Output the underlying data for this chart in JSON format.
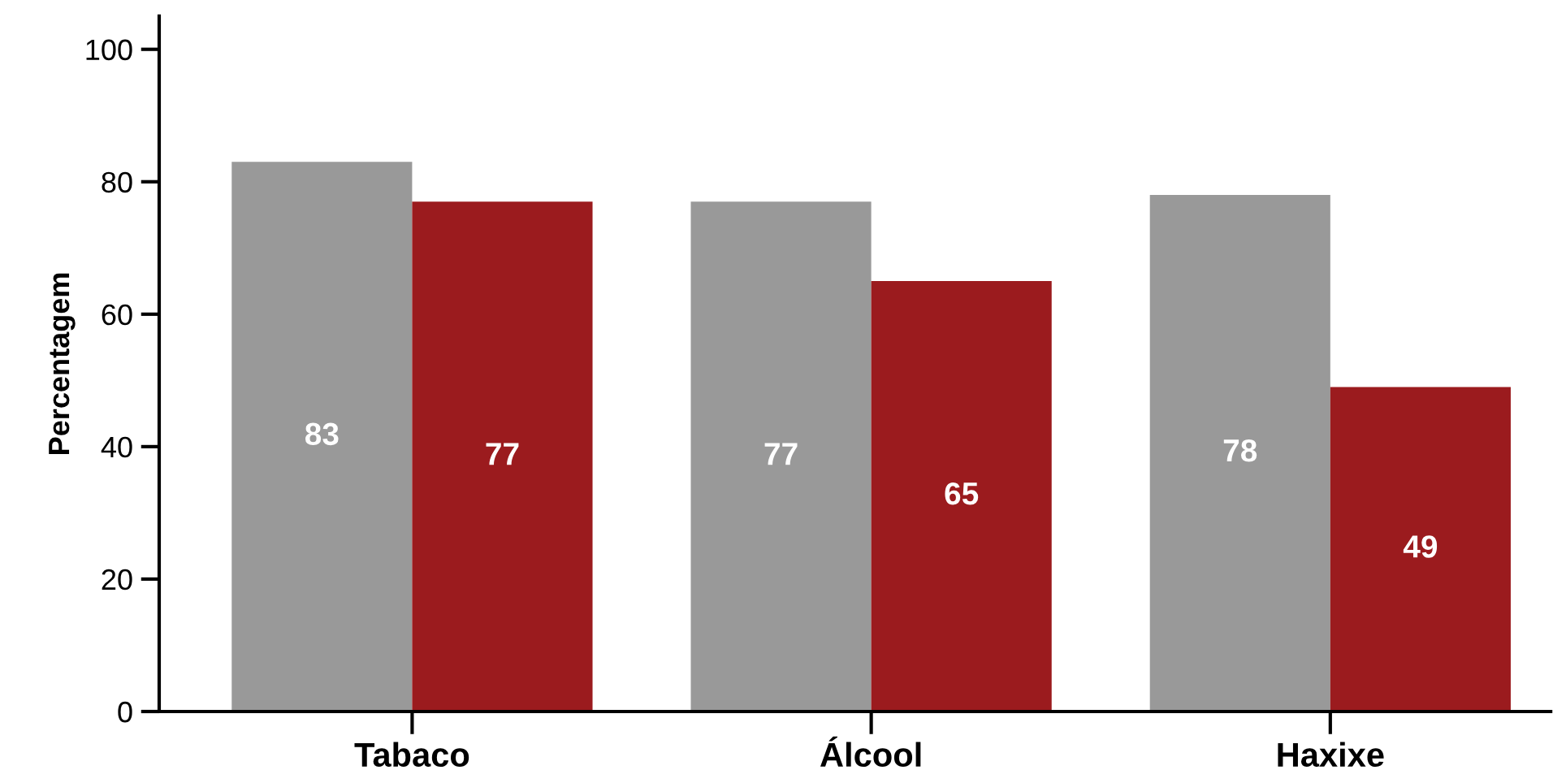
{
  "chart_data": {
    "type": "bar",
    "ylabel": "Percentagem",
    "categories": [
      "Tabaco",
      "Álcool",
      "Haxixe"
    ],
    "series": [
      {
        "color": "#999999",
        "values": [
          83,
          77,
          78
        ]
      },
      {
        "color": "#9b1b1e",
        "values": [
          77,
          65,
          49
        ]
      }
    ],
    "ylim": [
      0,
      105
    ],
    "yticks": [
      0,
      20,
      40,
      60,
      80,
      100
    ],
    "data_labels": true,
    "grid": false
  }
}
